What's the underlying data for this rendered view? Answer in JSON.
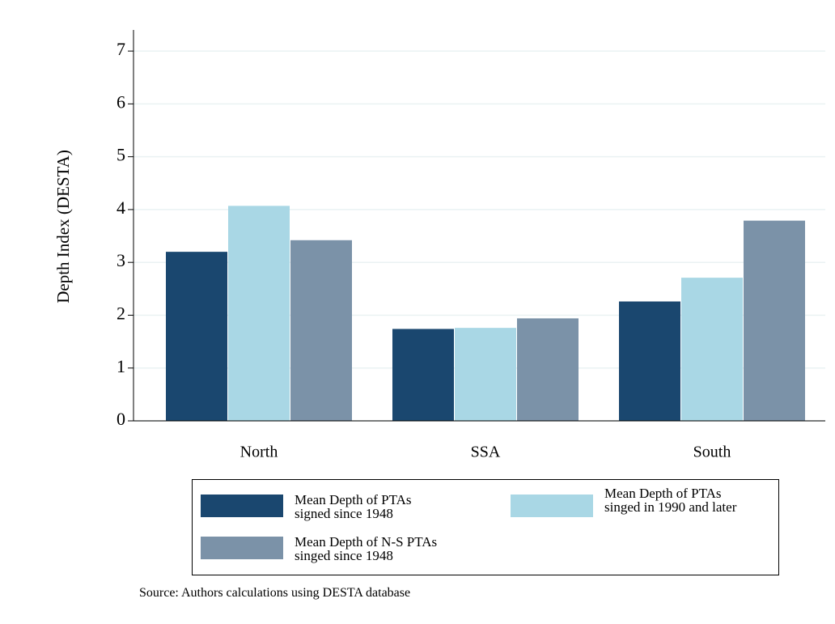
{
  "chart_data": {
    "type": "bar",
    "y_label": "Depth Index (DESTA)",
    "categories": [
      "North",
      "SSA",
      "South"
    ],
    "series": [
      {
        "name": "Mean Depth of PTAs signed since 1948",
        "color": "#1a476f",
        "values": [
          3.2,
          1.74,
          2.26
        ]
      },
      {
        "name": "Mean Depth of PTAs singed in 1990 and later",
        "color": "#a9d7e5",
        "values": [
          4.07,
          1.76,
          2.71
        ]
      },
      {
        "name": "Mean Depth of N-S PTAs singed since 1948",
        "color": "#7b92a8",
        "values": [
          3.42,
          1.94,
          3.79
        ]
      }
    ],
    "ylim": [
      0,
      7.4
    ],
    "yticks": [
      0,
      1,
      2,
      3,
      4,
      5,
      6,
      7
    ],
    "grid": true,
    "note": "Source: Authors calculations using DESTA database"
  }
}
